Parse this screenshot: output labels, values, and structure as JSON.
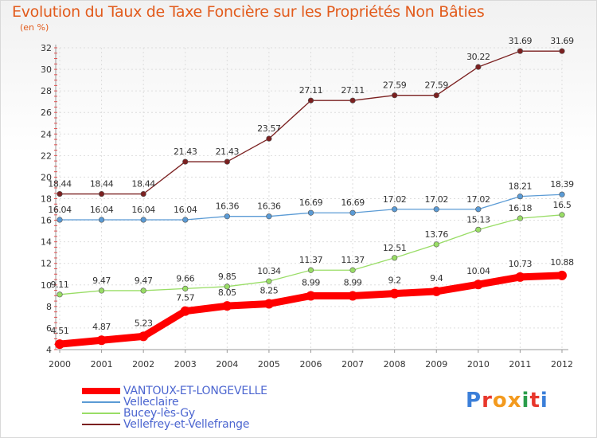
{
  "header": {
    "title": "Evolution du Taux de Taxe Foncière sur les Propriétés Non Bâties",
    "unit": "(en %)"
  },
  "logo": {
    "text": "Proxiti"
  },
  "chart_data": {
    "type": "line",
    "title": "Evolution du Taux de Taxe Foncière sur les Propriétés Non Bâties",
    "ylabel": "(en %)",
    "xlabel": "",
    "x": [
      "2000",
      "2001",
      "2002",
      "2003",
      "2004",
      "2005",
      "2006",
      "2007",
      "2008",
      "2009",
      "2010",
      "2011",
      "2012"
    ],
    "ylim": [
      4,
      32
    ],
    "yticks": [
      4,
      6,
      8,
      10,
      12,
      14,
      16,
      18,
      20,
      22,
      24,
      26,
      28,
      30,
      32
    ],
    "grid": true,
    "legend_position": "bottom-left",
    "series": [
      {
        "name": "VANTOUX-ET-LONGEVELLE",
        "color": "#ff0000",
        "emphasis": true,
        "values": [
          4.51,
          4.87,
          5.23,
          7.57,
          8.05,
          8.25,
          8.99,
          8.99,
          9.2,
          9.4,
          10.04,
          10.73,
          10.88
        ]
      },
      {
        "name": "Velleclaire",
        "color": "#5b9bd5",
        "values": [
          16.04,
          16.04,
          16.04,
          16.04,
          16.36,
          16.36,
          16.69,
          16.69,
          17.02,
          17.02,
          17.02,
          18.21,
          18.39
        ]
      },
      {
        "name": "Bucey-lès-Gy",
        "color": "#99dd66",
        "values": [
          9.11,
          9.47,
          9.47,
          9.66,
          9.85,
          10.34,
          11.37,
          11.37,
          12.51,
          13.76,
          15.13,
          16.18,
          16.5
        ]
      },
      {
        "name": "Vellefrey-et-Vellefrange",
        "color": "#7b2020",
        "values": [
          18.44,
          18.44,
          18.44,
          21.43,
          21.43,
          23.57,
          27.11,
          27.11,
          27.59,
          27.59,
          30.22,
          31.69,
          31.69
        ]
      }
    ]
  }
}
